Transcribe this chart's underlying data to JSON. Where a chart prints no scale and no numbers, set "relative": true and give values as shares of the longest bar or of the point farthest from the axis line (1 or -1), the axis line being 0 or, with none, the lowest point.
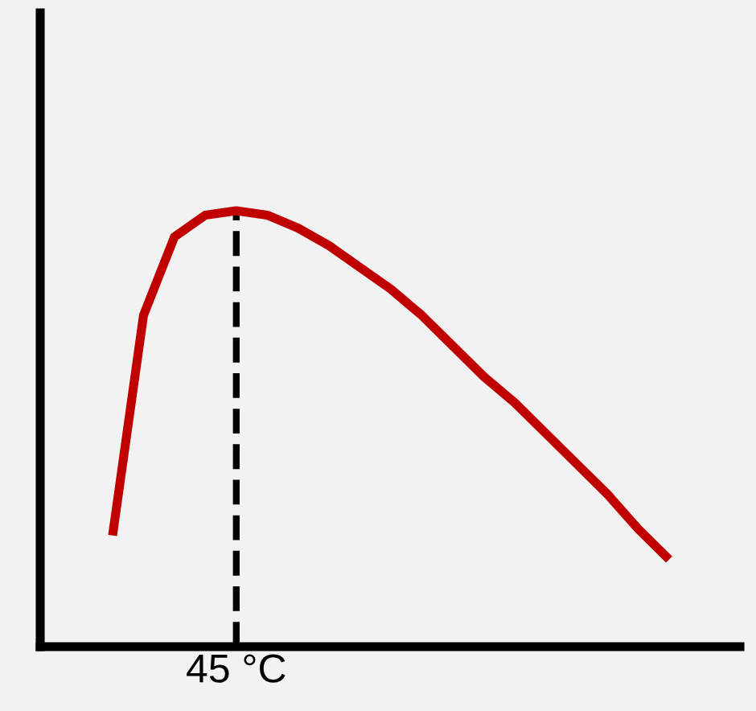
{
  "chart_data": {
    "type": "line",
    "relative": true,
    "categories": [
      null,
      null,
      null,
      null,
      null,
      null,
      null,
      null,
      null,
      null,
      null,
      null,
      null,
      null,
      null,
      null,
      null,
      null,
      null
    ],
    "series": [
      {
        "color": "#c00000",
        "values": [
          0.255,
          0.76,
          0.94,
          0.99,
          1.0,
          0.99,
          0.96,
          0.92,
          0.87,
          0.82,
          0.76,
          0.69,
          0.62,
          0.56,
          0.49,
          0.42,
          0.35,
          0.27,
          0.2
        ]
      }
    ],
    "annotations": [
      "45 °C"
    ],
    "legend": false,
    "marker": "none",
    "line_style": "solid"
  }
}
